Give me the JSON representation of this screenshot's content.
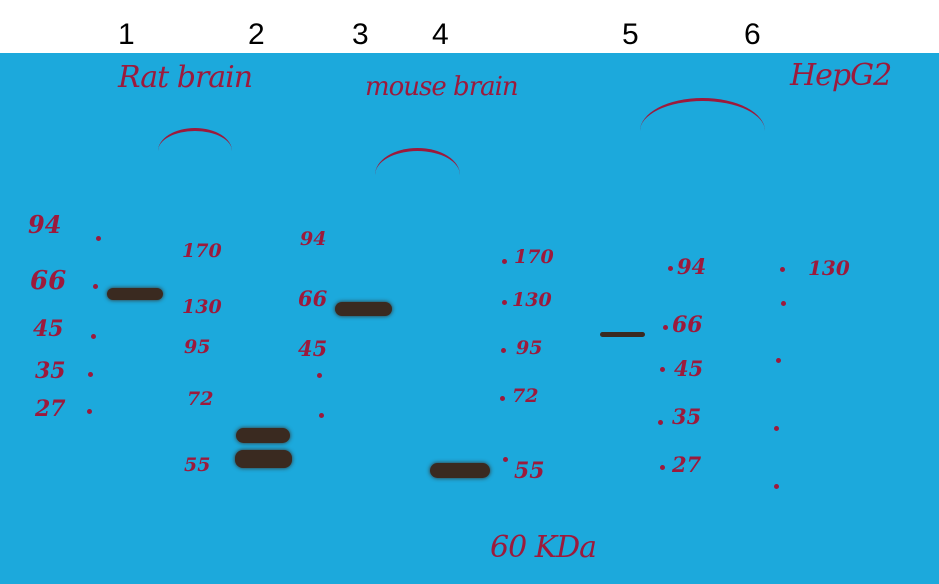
{
  "lanes": [
    "1",
    "2",
    "3",
    "4",
    "5",
    "6"
  ],
  "sample_labels": {
    "rat": "Rat brain",
    "mouse": "mouse brain",
    "hepg2": "HepG2"
  },
  "footer_label": "60 KDa",
  "markers": {
    "set1": [
      "94",
      "66",
      "45",
      "35",
      "27"
    ],
    "set2": [
      "170",
      "130",
      "95",
      "72",
      "55"
    ],
    "set3": [
      "94",
      "66",
      "45"
    ],
    "set4": [
      "170",
      "130",
      "95",
      "72",
      "55"
    ],
    "set5": [
      "94",
      "66",
      "45",
      "35",
      "27"
    ],
    "set6": [
      "130"
    ]
  },
  "colors": {
    "membrane": "#1ca9dc",
    "ink": "#9c1a3c",
    "band": "#3a2a20"
  }
}
